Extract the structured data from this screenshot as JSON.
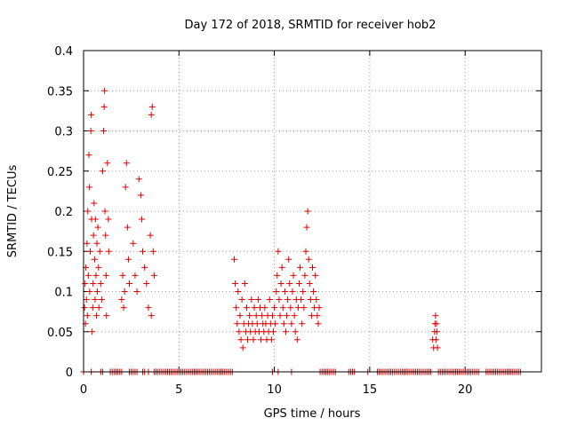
{
  "chart_data": {
    "type": "scatter",
    "title": "Day 172 of 2018, SRMTID for receiver hob2",
    "xlabel": "GPS time / hours",
    "ylabel": "SRMTID / TECUs",
    "xlim": [
      0,
      24
    ],
    "ylim": [
      0,
      0.4
    ],
    "xticks": [
      0,
      5,
      10,
      15,
      20
    ],
    "yticks": [
      0,
      0.05,
      0.1,
      0.15,
      0.2,
      0.25,
      0.3,
      0.35,
      0.4
    ],
    "xtick_labels": [
      "0",
      "5",
      "10",
      "15",
      "20"
    ],
    "ytick_labels": [
      "0",
      "0.05",
      "0.1",
      "0.15",
      "0.2",
      "0.25",
      "0.3",
      "0.35",
      "0.4"
    ],
    "grid": true,
    "marker": "+",
    "color": "#e00000",
    "series": [
      {
        "name": "SRMTID",
        "points": [
          [
            0.05,
            0.08
          ],
          [
            0.08,
            0.11
          ],
          [
            0.1,
            0.06
          ],
          [
            0.12,
            0.13
          ],
          [
            0.15,
            0.09
          ],
          [
            0.18,
            0.16
          ],
          [
            0.2,
            0.07
          ],
          [
            0.22,
            0.2
          ],
          [
            0.25,
            0.12
          ],
          [
            0.28,
            0.27
          ],
          [
            0.3,
            0.23
          ],
          [
            0.32,
            0.1
          ],
          [
            0.35,
            0.15
          ],
          [
            0.38,
            0.3
          ],
          [
            0.4,
            0.32
          ],
          [
            0.42,
            0.19
          ],
          [
            0.45,
            0.05
          ],
          [
            0.48,
            0.08
          ],
          [
            0.5,
            0.11
          ],
          [
            0.52,
            0.17
          ],
          [
            0.55,
            0.21
          ],
          [
            0.58,
            0.14
          ],
          [
            0.6,
            0.09
          ],
          [
            0.62,
            0.19
          ],
          [
            0.65,
            0.12
          ],
          [
            0.68,
            0.07
          ],
          [
            0.7,
            0.16
          ],
          [
            0.72,
            0.1
          ],
          [
            0.75,
            0.18
          ],
          [
            0.78,
            0.13
          ],
          [
            0.8,
            0.08
          ],
          [
            0.85,
            0.15
          ],
          [
            0.9,
            0.11
          ],
          [
            0.95,
            0.09
          ],
          [
            1.0,
            0.25
          ],
          [
            1.05,
            0.3
          ],
          [
            1.08,
            0.33
          ],
          [
            1.1,
            0.35
          ],
          [
            1.12,
            0.2
          ],
          [
            1.15,
            0.17
          ],
          [
            1.18,
            0.12
          ],
          [
            1.2,
            0.07
          ],
          [
            1.25,
            0.26
          ],
          [
            1.3,
            0.19
          ],
          [
            1.32,
            0.15
          ],
          [
            2.0,
            0.09
          ],
          [
            2.05,
            0.12
          ],
          [
            2.1,
            0.08
          ],
          [
            2.15,
            0.1
          ],
          [
            2.2,
            0.23
          ],
          [
            2.25,
            0.26
          ],
          [
            2.3,
            0.18
          ],
          [
            2.35,
            0.14
          ],
          [
            2.4,
            0.11
          ],
          [
            2.6,
            0.16
          ],
          [
            2.7,
            0.12
          ],
          [
            2.8,
            0.1
          ],
          [
            2.9,
            0.24
          ],
          [
            3.0,
            0.22
          ],
          [
            3.05,
            0.19
          ],
          [
            3.1,
            0.15
          ],
          [
            3.2,
            0.13
          ],
          [
            3.3,
            0.11
          ],
          [
            3.4,
            0.08
          ],
          [
            3.5,
            0.17
          ],
          [
            3.55,
            0.32
          ],
          [
            3.6,
            0.33
          ],
          [
            3.65,
            0.15
          ],
          [
            3.7,
            0.12
          ],
          [
            3.55,
            0.07
          ],
          [
            7.9,
            0.14
          ],
          [
            7.95,
            0.11
          ],
          [
            8.0,
            0.08
          ],
          [
            8.05,
            0.06
          ],
          [
            8.1,
            0.1
          ],
          [
            8.15,
            0.05
          ],
          [
            8.2,
            0.07
          ],
          [
            8.25,
            0.04
          ],
          [
            8.3,
            0.09
          ],
          [
            8.35,
            0.03
          ],
          [
            8.4,
            0.06
          ],
          [
            8.45,
            0.11
          ],
          [
            8.5,
            0.05
          ],
          [
            8.55,
            0.08
          ],
          [
            8.6,
            0.04
          ],
          [
            8.65,
            0.06
          ],
          [
            8.7,
            0.07
          ],
          [
            8.75,
            0.05
          ],
          [
            8.8,
            0.09
          ],
          [
            8.85,
            0.06
          ],
          [
            8.9,
            0.04
          ],
          [
            8.95,
            0.08
          ],
          [
            9.0,
            0.05
          ],
          [
            9.05,
            0.07
          ],
          [
            9.1,
            0.06
          ],
          [
            9.15,
            0.09
          ],
          [
            9.2,
            0.05
          ],
          [
            9.25,
            0.08
          ],
          [
            9.3,
            0.04
          ],
          [
            9.35,
            0.07
          ],
          [
            9.4,
            0.06
          ],
          [
            9.45,
            0.05
          ],
          [
            9.5,
            0.08
          ],
          [
            9.55,
            0.06
          ],
          [
            9.6,
            0.04
          ],
          [
            9.65,
            0.07
          ],
          [
            9.7,
            0.05
          ],
          [
            9.75,
            0.09
          ],
          [
            9.8,
            0.06
          ],
          [
            9.85,
            0.04
          ],
          [
            9.9,
            0.07
          ],
          [
            9.95,
            0.05
          ],
          [
            10.0,
            0.08
          ],
          [
            10.05,
            0.06
          ],
          [
            10.1,
            0.1
          ],
          [
            10.15,
            0.12
          ],
          [
            10.2,
            0.15
          ],
          [
            10.25,
            0.09
          ],
          [
            10.3,
            0.07
          ],
          [
            10.35,
            0.11
          ],
          [
            10.4,
            0.13
          ],
          [
            10.45,
            0.08
          ],
          [
            10.5,
            0.06
          ],
          [
            10.55,
            0.1
          ],
          [
            10.6,
            0.05
          ],
          [
            10.65,
            0.07
          ],
          [
            10.7,
            0.09
          ],
          [
            10.75,
            0.14
          ],
          [
            10.8,
            0.11
          ],
          [
            10.85,
            0.08
          ],
          [
            10.9,
            0.06
          ],
          [
            10.95,
            0.1
          ],
          [
            11.0,
            0.12
          ],
          [
            11.05,
            0.07
          ],
          [
            11.1,
            0.05
          ],
          [
            11.15,
            0.09
          ],
          [
            11.2,
            0.04
          ],
          [
            11.25,
            0.08
          ],
          [
            11.3,
            0.11
          ],
          [
            11.35,
            0.13
          ],
          [
            11.4,
            0.09
          ],
          [
            11.45,
            0.06
          ],
          [
            11.5,
            0.1
          ],
          [
            11.55,
            0.08
          ],
          [
            11.6,
            0.12
          ],
          [
            11.65,
            0.15
          ],
          [
            11.7,
            0.18
          ],
          [
            11.75,
            0.2
          ],
          [
            11.8,
            0.14
          ],
          [
            11.85,
            0.11
          ],
          [
            11.9,
            0.09
          ],
          [
            11.95,
            0.07
          ],
          [
            12.0,
            0.13
          ],
          [
            12.05,
            0.1
          ],
          [
            12.1,
            0.08
          ],
          [
            12.15,
            0.12
          ],
          [
            12.2,
            0.09
          ],
          [
            12.25,
            0.07
          ],
          [
            12.3,
            0.06
          ],
          [
            12.35,
            0.08
          ],
          [
            18.3,
            0.04
          ],
          [
            18.35,
            0.03
          ],
          [
            18.4,
            0.05
          ],
          [
            18.42,
            0.06
          ],
          [
            18.45,
            0.07
          ],
          [
            18.48,
            0.04
          ],
          [
            18.5,
            0.06
          ],
          [
            18.52,
            0.05
          ],
          [
            18.55,
            0.03
          ]
        ]
      }
    ],
    "zero_points": [
      [
        0.0,
        0
      ],
      [
        0.4,
        0
      ],
      [
        0.9,
        0
      ],
      [
        1.0,
        0
      ],
      [
        1.4,
        0
      ],
      [
        1.5,
        0
      ],
      [
        1.6,
        0
      ],
      [
        1.7,
        0
      ],
      [
        1.8,
        0
      ],
      [
        1.9,
        0
      ],
      [
        2.0,
        0
      ],
      [
        2.4,
        0
      ],
      [
        2.5,
        0
      ],
      [
        2.6,
        0
      ],
      [
        2.7,
        0
      ],
      [
        2.8,
        0
      ],
      [
        3.1,
        0
      ],
      [
        3.2,
        0
      ],
      [
        3.4,
        0
      ],
      [
        3.7,
        0
      ],
      [
        3.8,
        0
      ],
      [
        3.9,
        0
      ],
      [
        4.0,
        0
      ],
      [
        4.1,
        0
      ],
      [
        4.2,
        0
      ],
      [
        4.3,
        0
      ],
      [
        4.4,
        0
      ],
      [
        4.5,
        0
      ],
      [
        4.6,
        0
      ],
      [
        4.7,
        0
      ],
      [
        4.8,
        0
      ],
      [
        4.9,
        0
      ],
      [
        5.0,
        0
      ],
      [
        5.1,
        0
      ],
      [
        5.2,
        0
      ],
      [
        5.3,
        0
      ],
      [
        5.4,
        0
      ],
      [
        5.5,
        0
      ],
      [
        5.6,
        0
      ],
      [
        5.7,
        0
      ],
      [
        5.8,
        0
      ],
      [
        5.9,
        0
      ],
      [
        6.0,
        0
      ],
      [
        6.1,
        0
      ],
      [
        6.2,
        0
      ],
      [
        6.3,
        0
      ],
      [
        6.4,
        0
      ],
      [
        6.5,
        0
      ],
      [
        6.6,
        0
      ],
      [
        6.7,
        0
      ],
      [
        6.8,
        0
      ],
      [
        6.9,
        0
      ],
      [
        7.0,
        0
      ],
      [
        7.1,
        0
      ],
      [
        7.2,
        0
      ],
      [
        7.3,
        0
      ],
      [
        7.4,
        0
      ],
      [
        7.5,
        0
      ],
      [
        7.6,
        0
      ],
      [
        7.7,
        0
      ],
      [
        7.8,
        0
      ],
      [
        9.9,
        0
      ],
      [
        10.2,
        0
      ],
      [
        10.9,
        0
      ],
      [
        12.4,
        0
      ],
      [
        12.5,
        0
      ],
      [
        12.6,
        0
      ],
      [
        12.7,
        0
      ],
      [
        12.8,
        0
      ],
      [
        12.9,
        0
      ],
      [
        13.0,
        0
      ],
      [
        13.1,
        0
      ],
      [
        13.2,
        0
      ],
      [
        13.9,
        0
      ],
      [
        14.0,
        0
      ],
      [
        14.1,
        0
      ],
      [
        14.2,
        0
      ],
      [
        14.9,
        0
      ],
      [
        15.4,
        0
      ],
      [
        15.5,
        0
      ],
      [
        15.6,
        0
      ],
      [
        15.7,
        0
      ],
      [
        15.8,
        0
      ],
      [
        15.9,
        0
      ],
      [
        16.0,
        0
      ],
      [
        16.1,
        0
      ],
      [
        16.2,
        0
      ],
      [
        16.3,
        0
      ],
      [
        16.4,
        0
      ],
      [
        16.5,
        0
      ],
      [
        16.6,
        0
      ],
      [
        16.7,
        0
      ],
      [
        16.8,
        0
      ],
      [
        16.9,
        0
      ],
      [
        17.0,
        0
      ],
      [
        17.1,
        0
      ],
      [
        17.2,
        0
      ],
      [
        17.3,
        0
      ],
      [
        17.4,
        0
      ],
      [
        17.5,
        0
      ],
      [
        17.6,
        0
      ],
      [
        17.7,
        0
      ],
      [
        17.8,
        0
      ],
      [
        17.9,
        0
      ],
      [
        18.0,
        0
      ],
      [
        18.1,
        0
      ],
      [
        18.2,
        0
      ],
      [
        18.6,
        0
      ],
      [
        18.7,
        0
      ],
      [
        18.8,
        0
      ],
      [
        18.9,
        0
      ],
      [
        19.0,
        0
      ],
      [
        19.1,
        0
      ],
      [
        19.2,
        0
      ],
      [
        19.3,
        0
      ],
      [
        19.4,
        0
      ],
      [
        19.5,
        0
      ],
      [
        19.6,
        0
      ],
      [
        19.7,
        0
      ],
      [
        19.8,
        0
      ],
      [
        19.9,
        0
      ],
      [
        20.0,
        0
      ],
      [
        20.1,
        0
      ],
      [
        20.2,
        0
      ],
      [
        20.3,
        0
      ],
      [
        20.4,
        0
      ],
      [
        20.5,
        0
      ],
      [
        20.6,
        0
      ],
      [
        20.7,
        0
      ],
      [
        21.1,
        0
      ],
      [
        21.2,
        0
      ],
      [
        21.3,
        0
      ],
      [
        21.4,
        0
      ],
      [
        21.5,
        0
      ],
      [
        21.6,
        0
      ],
      [
        21.7,
        0
      ],
      [
        21.8,
        0
      ],
      [
        21.9,
        0
      ],
      [
        22.0,
        0
      ],
      [
        22.1,
        0
      ],
      [
        22.2,
        0
      ],
      [
        22.3,
        0
      ],
      [
        22.4,
        0
      ],
      [
        22.5,
        0
      ],
      [
        22.6,
        0
      ],
      [
        22.7,
        0
      ],
      [
        22.8,
        0
      ],
      [
        22.9,
        0
      ]
    ]
  }
}
